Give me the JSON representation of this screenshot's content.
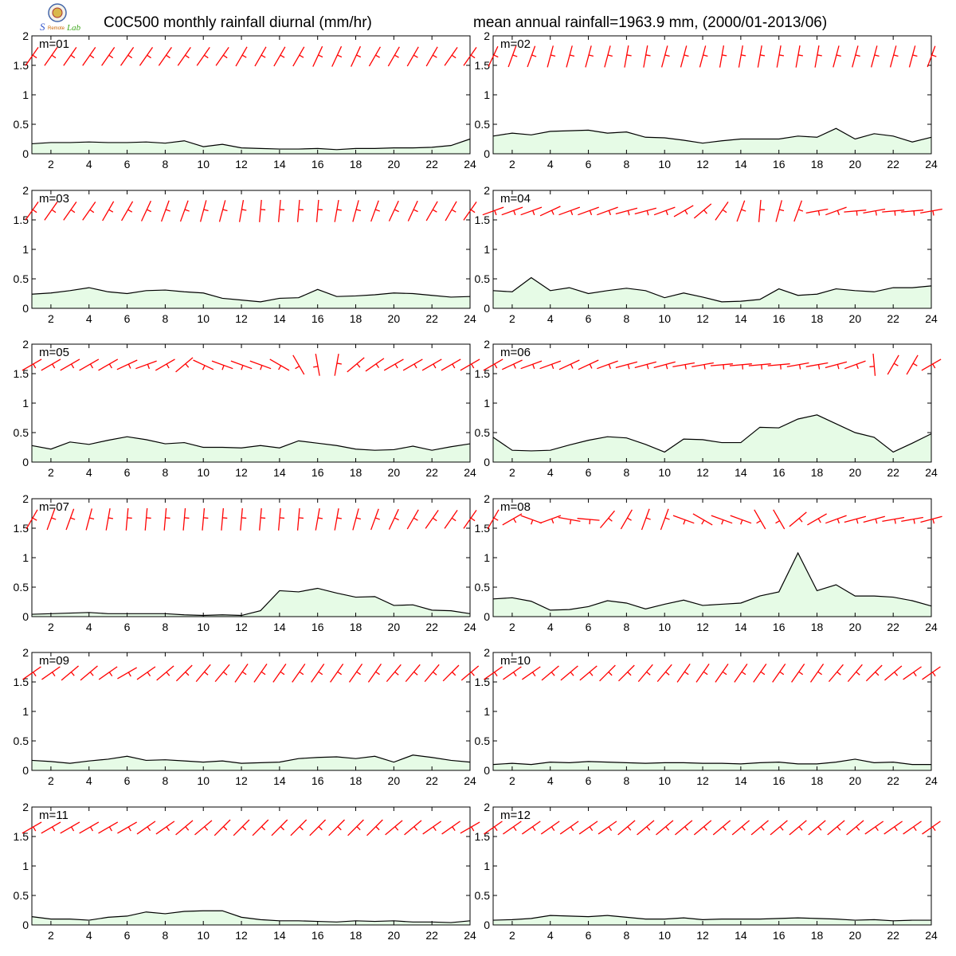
{
  "header": {
    "title_left": "C0C500 monthly rainfall diurnal (mm/hr)",
    "title_right": "mean annual rainfall=1963.9 mm, (2000/01-2013/06)",
    "logo_text": "Lab"
  },
  "chart_data": {
    "type": "area",
    "x_ticks": [
      2,
      4,
      6,
      8,
      10,
      12,
      14,
      16,
      18,
      20,
      22,
      24
    ],
    "y_ticks": [
      0,
      0.5,
      1,
      1.5,
      2
    ],
    "xlim": [
      1,
      24
    ],
    "ylim": [
      0,
      2
    ],
    "grid": false,
    "fill_color": "#e6fbe6",
    "line_color": "#000000",
    "wind_barb_color": "#ff0000",
    "wind_barb_level": 1.65,
    "panels": [
      {
        "label": "m=01",
        "values": [
          0.17,
          0.19,
          0.19,
          0.2,
          0.19,
          0.19,
          0.2,
          0.18,
          0.22,
          0.12,
          0.16,
          0.1,
          0.09,
          0.08,
          0.08,
          0.09,
          0.07,
          0.09,
          0.09,
          0.1,
          0.1,
          0.11,
          0.14,
          0.25
        ],
        "wind_dir": [
          35,
          35,
          35,
          35,
          35,
          35,
          35,
          35,
          35,
          35,
          35,
          30,
          30,
          30,
          30,
          25,
          25,
          25,
          30,
          30,
          30,
          30,
          35,
          35
        ]
      },
      {
        "label": "m=02",
        "values": [
          0.3,
          0.35,
          0.32,
          0.38,
          0.39,
          0.4,
          0.35,
          0.37,
          0.28,
          0.27,
          0.23,
          0.18,
          0.22,
          0.25,
          0.25,
          0.25,
          0.3,
          0.28,
          0.43,
          0.25,
          0.34,
          0.3,
          0.2,
          0.28
        ],
        "wind_dir": [
          25,
          20,
          20,
          15,
          15,
          15,
          15,
          10,
          10,
          15,
          15,
          15,
          10,
          10,
          10,
          10,
          10,
          10,
          15,
          15,
          15,
          15,
          15,
          20
        ]
      },
      {
        "label": "m=03",
        "values": [
          0.24,
          0.26,
          0.3,
          0.35,
          0.28,
          0.25,
          0.3,
          0.31,
          0.28,
          0.26,
          0.17,
          0.14,
          0.11,
          0.17,
          0.18,
          0.32,
          0.2,
          0.21,
          0.23,
          0.26,
          0.25,
          0.22,
          0.19,
          0.2
        ],
        "wind_dir": [
          35,
          35,
          35,
          35,
          30,
          30,
          25,
          20,
          20,
          15,
          15,
          10,
          5,
          5,
          5,
          5,
          10,
          15,
          20,
          25,
          25,
          30,
          30,
          35
        ]
      },
      {
        "label": "m=04",
        "values": [
          0.3,
          0.28,
          0.52,
          0.3,
          0.35,
          0.25,
          0.3,
          0.34,
          0.3,
          0.18,
          0.26,
          0.19,
          0.11,
          0.12,
          0.15,
          0.33,
          0.22,
          0.24,
          0.33,
          0.3,
          0.28,
          0.35,
          0.35,
          0.38
        ],
        "wind_dir": [
          70,
          70,
          70,
          65,
          70,
          70,
          70,
          75,
          75,
          70,
          60,
          50,
          35,
          20,
          5,
          15,
          20,
          80,
          70,
          85,
          80,
          85,
          85,
          80
        ]
      },
      {
        "label": "m=05",
        "values": [
          0.28,
          0.22,
          0.34,
          0.3,
          0.37,
          0.43,
          0.38,
          0.31,
          0.33,
          0.25,
          0.25,
          0.24,
          0.28,
          0.24,
          0.36,
          0.32,
          0.28,
          0.22,
          0.2,
          0.21,
          0.27,
          0.2,
          0.26,
          0.31
        ],
        "wind_dir": [
          60,
          60,
          60,
          60,
          60,
          65,
          70,
          60,
          50,
          115,
          110,
          110,
          110,
          120,
          150,
          170,
          10,
          50,
          55,
          60,
          60,
          60,
          60,
          60
        ]
      },
      {
        "label": "m=06",
        "values": [
          0.42,
          0.2,
          0.19,
          0.2,
          0.29,
          0.37,
          0.43,
          0.41,
          0.3,
          0.17,
          0.39,
          0.38,
          0.33,
          0.33,
          0.59,
          0.58,
          0.73,
          0.8,
          0.65,
          0.5,
          0.42,
          0.17,
          0.32,
          0.48
        ],
        "wind_dir": [
          60,
          65,
          70,
          70,
          65,
          65,
          70,
          75,
          75,
          75,
          80,
          80,
          85,
          85,
          85,
          85,
          80,
          80,
          75,
          70,
          175,
          30,
          30,
          60
        ]
      },
      {
        "label": "m=07",
        "values": [
          0.04,
          0.05,
          0.06,
          0.07,
          0.05,
          0.05,
          0.05,
          0.05,
          0.03,
          0.02,
          0.03,
          0.02,
          0.1,
          0.44,
          0.42,
          0.48,
          0.4,
          0.33,
          0.34,
          0.19,
          0.2,
          0.11,
          0.1,
          0.05
        ],
        "wind_dir": [
          30,
          20,
          20,
          15,
          10,
          5,
          5,
          5,
          5,
          5,
          5,
          5,
          5,
          5,
          5,
          10,
          10,
          15,
          20,
          25,
          30,
          35,
          35,
          35
        ]
      },
      {
        "label": "m=08",
        "values": [
          0.3,
          0.32,
          0.26,
          0.11,
          0.12,
          0.17,
          0.27,
          0.23,
          0.13,
          0.21,
          0.28,
          0.19,
          0.21,
          0.23,
          0.35,
          0.42,
          1.08,
          0.44,
          0.54,
          0.35,
          0.35,
          0.33,
          0.27,
          0.18
        ],
        "wind_dir": [
          30,
          60,
          110,
          70,
          100,
          95,
          40,
          30,
          20,
          20,
          110,
          120,
          110,
          110,
          150,
          150,
          50,
          60,
          70,
          75,
          75,
          80,
          80,
          75
        ]
      },
      {
        "label": "m=09",
        "values": [
          0.17,
          0.15,
          0.12,
          0.16,
          0.19,
          0.24,
          0.17,
          0.18,
          0.16,
          0.14,
          0.16,
          0.12,
          0.13,
          0.14,
          0.2,
          0.22,
          0.23,
          0.2,
          0.24,
          0.14,
          0.26,
          0.22,
          0.17,
          0.14
        ],
        "wind_dir": [
          55,
          55,
          50,
          50,
          55,
          60,
          55,
          50,
          45,
          40,
          40,
          35,
          35,
          35,
          35,
          35,
          35,
          35,
          35,
          40,
          40,
          40,
          45,
          50
        ]
      },
      {
        "label": "m=10",
        "values": [
          0.1,
          0.12,
          0.1,
          0.14,
          0.13,
          0.15,
          0.14,
          0.13,
          0.12,
          0.13,
          0.13,
          0.12,
          0.12,
          0.11,
          0.13,
          0.14,
          0.11,
          0.11,
          0.14,
          0.19,
          0.13,
          0.14,
          0.1,
          0.1
        ],
        "wind_dir": [
          55,
          55,
          55,
          50,
          50,
          50,
          45,
          45,
          40,
          40,
          35,
          35,
          35,
          35,
          35,
          35,
          35,
          35,
          40,
          40,
          45,
          50,
          55,
          55
        ]
      },
      {
        "label": "m=11",
        "values": [
          0.14,
          0.1,
          0.1,
          0.08,
          0.13,
          0.15,
          0.22,
          0.19,
          0.23,
          0.24,
          0.24,
          0.13,
          0.09,
          0.07,
          0.07,
          0.06,
          0.05,
          0.07,
          0.06,
          0.07,
          0.05,
          0.05,
          0.04,
          0.07
        ],
        "wind_dir": [
          60,
          60,
          60,
          60,
          60,
          60,
          55,
          55,
          50,
          50,
          45,
          45,
          45,
          45,
          45,
          45,
          45,
          45,
          45,
          50,
          50,
          55,
          55,
          60
        ]
      },
      {
        "label": "m=12",
        "values": [
          0.08,
          0.09,
          0.11,
          0.16,
          0.15,
          0.14,
          0.16,
          0.13,
          0.1,
          0.1,
          0.12,
          0.09,
          0.1,
          0.1,
          0.1,
          0.11,
          0.12,
          0.11,
          0.1,
          0.08,
          0.09,
          0.07,
          0.08,
          0.08
        ],
        "wind_dir": [
          55,
          55,
          55,
          55,
          55,
          55,
          55,
          50,
          50,
          50,
          50,
          50,
          50,
          50,
          50,
          50,
          50,
          50,
          50,
          50,
          55,
          55,
          55,
          55
        ]
      }
    ]
  }
}
